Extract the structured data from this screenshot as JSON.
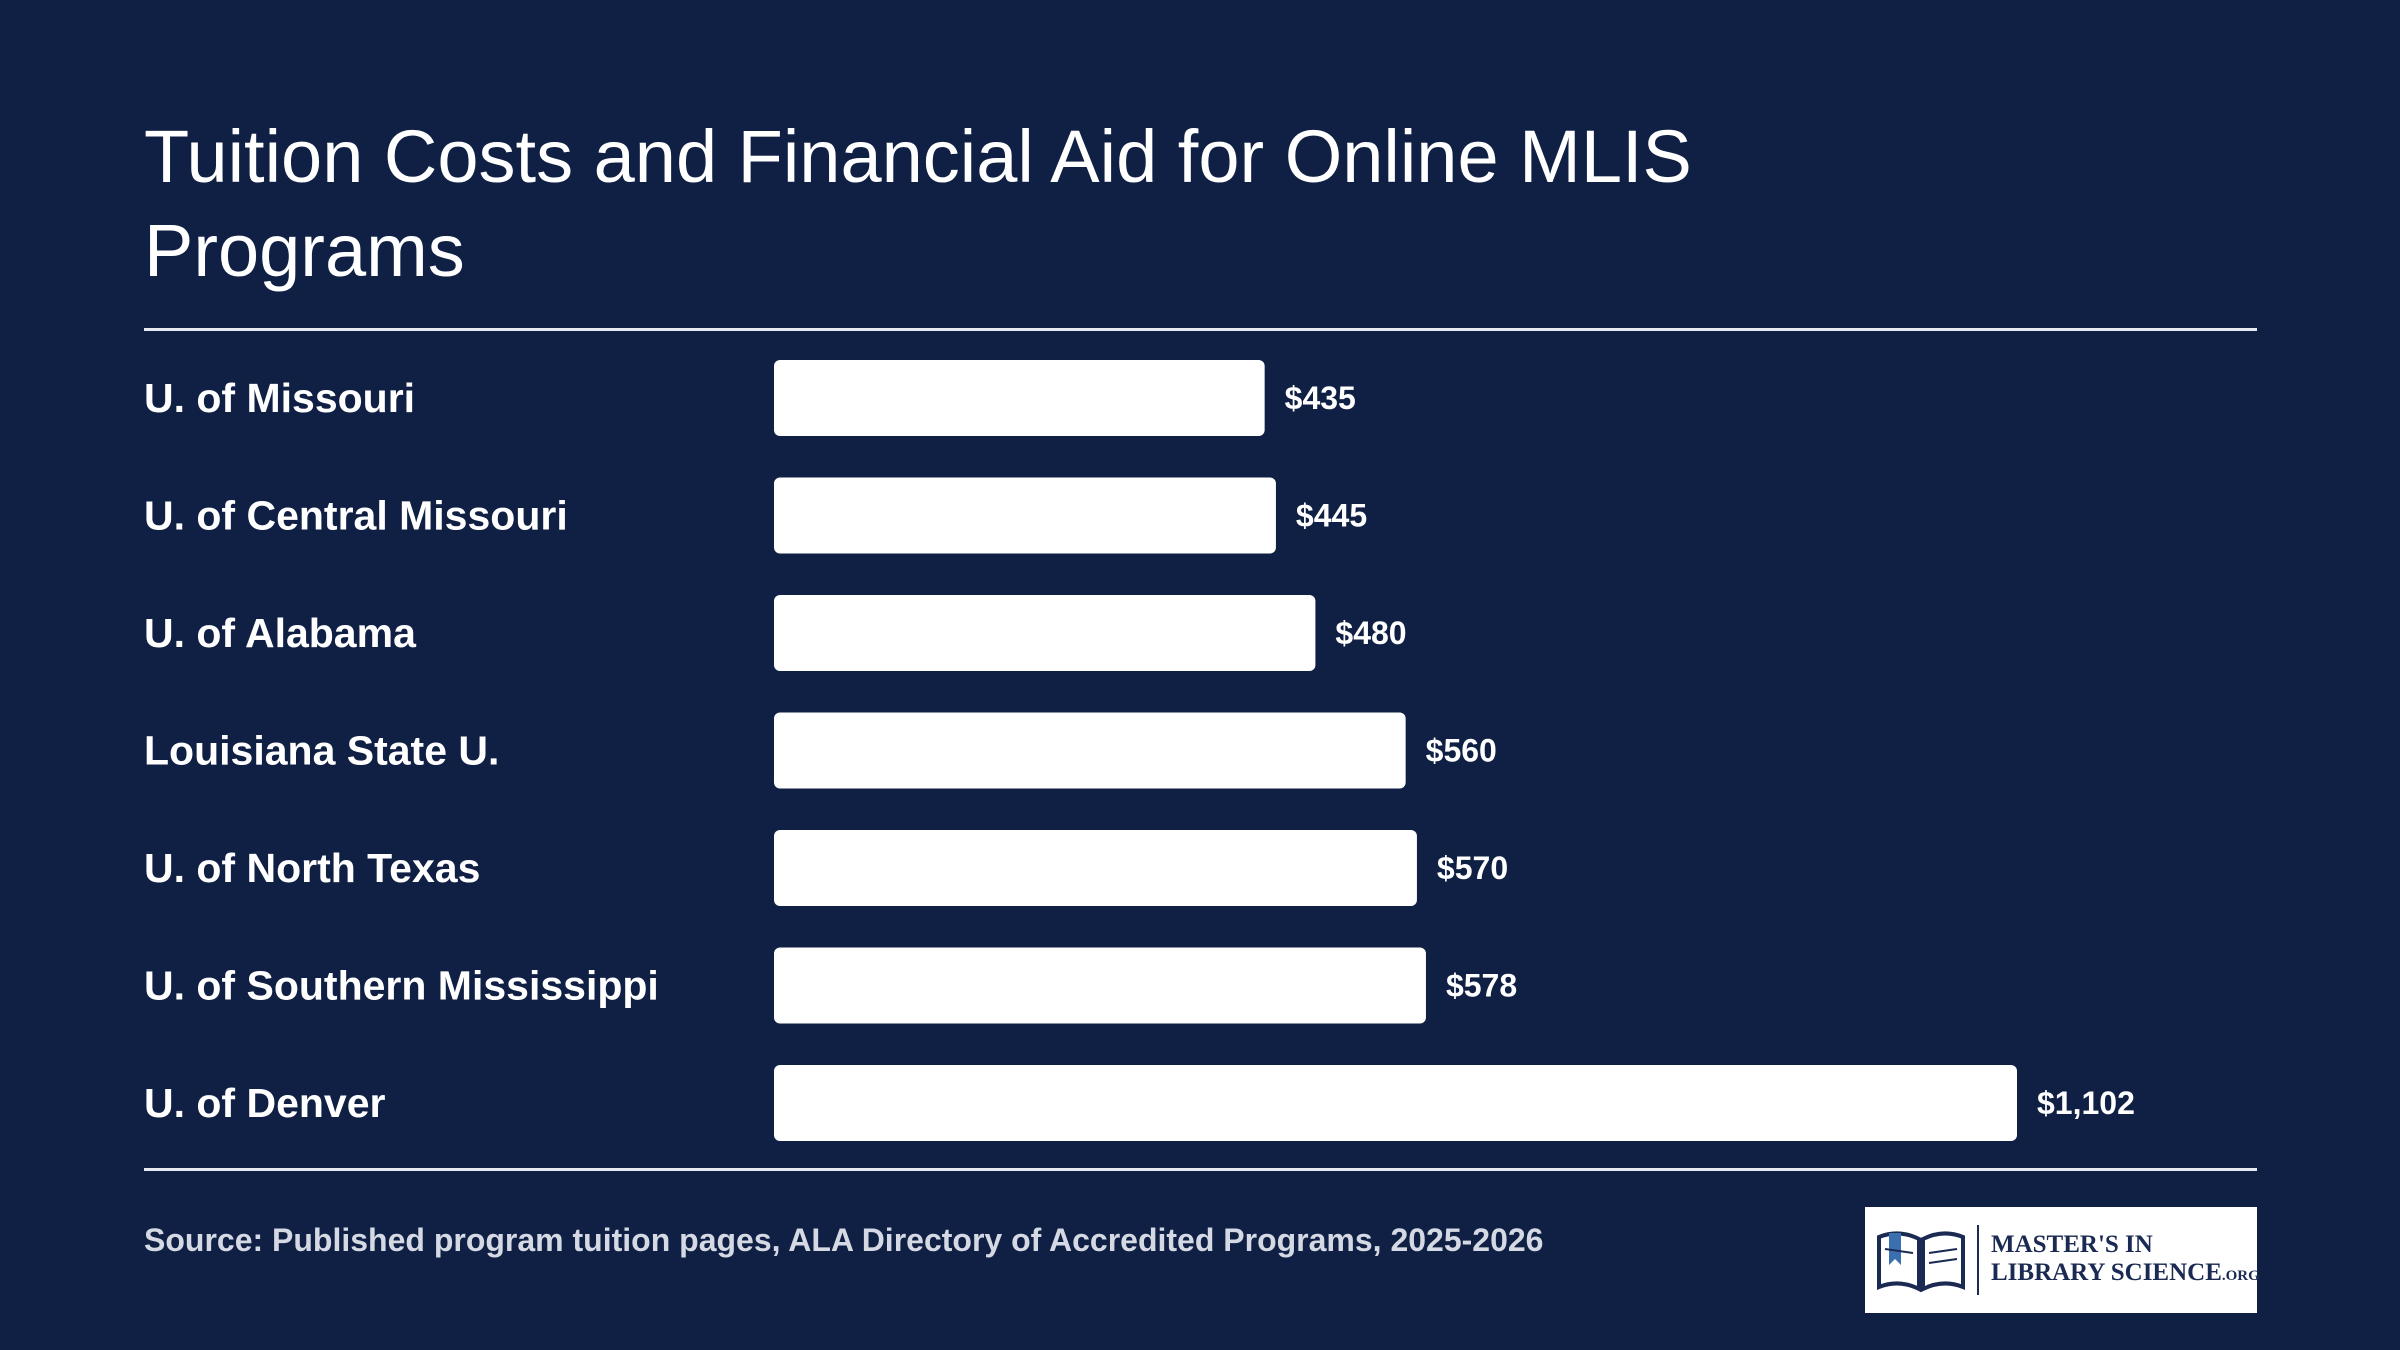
{
  "title": "Tuition Costs and Financial Aid for Online MLIS Programs",
  "source": "Source: Published program tuition pages, ALA Directory of Accredited Programs, 2025-2026",
  "logo": {
    "line1": "MASTER'S IN",
    "line2": "LIBRARY SCIENCE",
    "suffix": ".ORG",
    "icon": "open-book-icon"
  },
  "colors": {
    "background": "#102044",
    "bar": "#ffffff",
    "text": "#ffffff"
  },
  "chart_data": {
    "type": "bar",
    "orientation": "horizontal",
    "categories": [
      "U. of Missouri",
      "U. of Central Missouri",
      "U. of Alabama",
      "Louisiana State U.",
      "U. of North Texas",
      "U. of Southern Mississippi",
      "U. of Denver"
    ],
    "values": [
      435,
      445,
      480,
      560,
      570,
      578,
      1102
    ],
    "value_labels": [
      "$435",
      "$445",
      "$480",
      "$560",
      "$570",
      "$578",
      "$1,102"
    ],
    "title": "Tuition Costs and Financial Aid for Online MLIS Programs",
    "xlabel": "",
    "ylabel": "",
    "grid": false,
    "legend": "none"
  }
}
